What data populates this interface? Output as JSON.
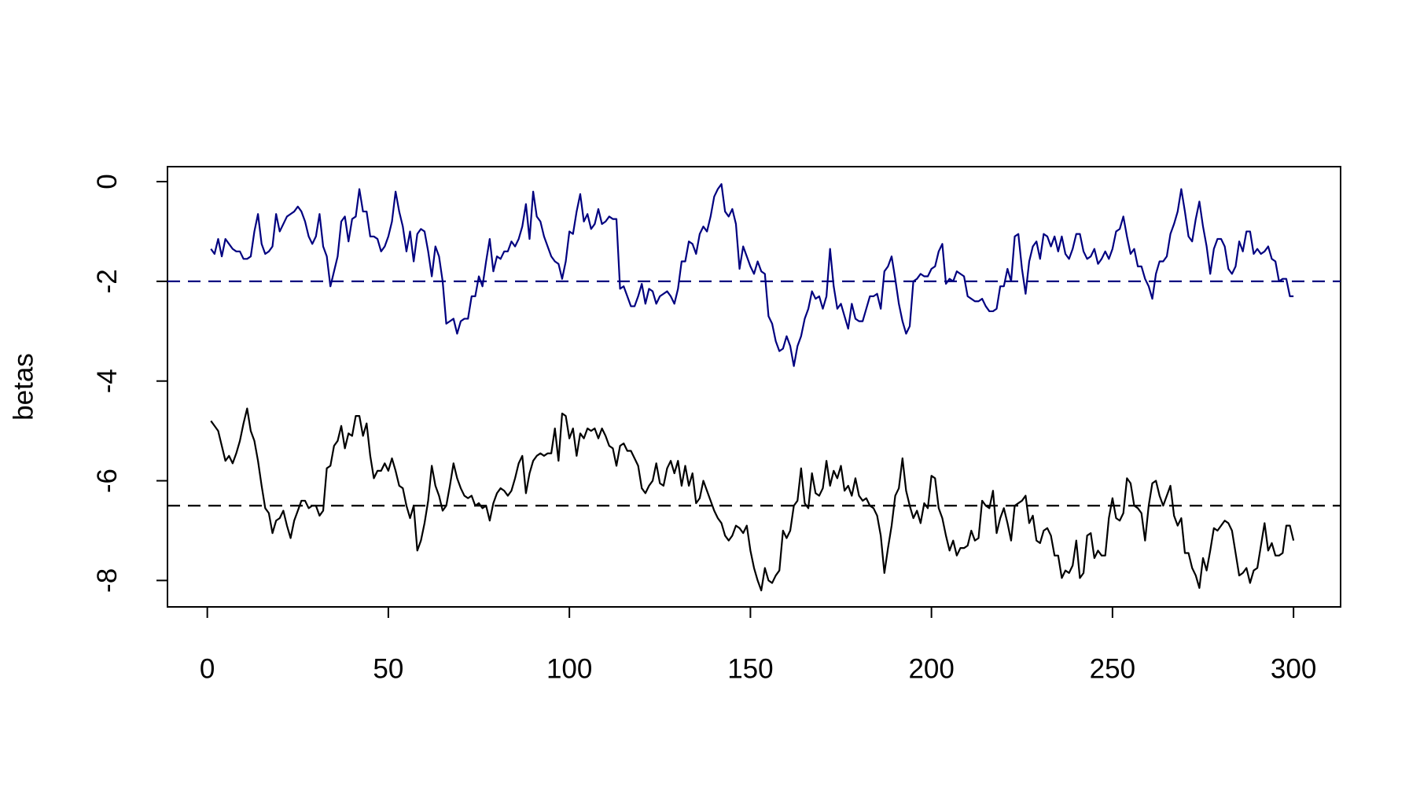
{
  "chart_data": {
    "type": "line",
    "y_label": "betas",
    "x": [
      1,
      2,
      3,
      4,
      5,
      6,
      7,
      8,
      9,
      10,
      11,
      12,
      13,
      14,
      15,
      16,
      17,
      18,
      19,
      20,
      21,
      22,
      23,
      24,
      25,
      26,
      27,
      28,
      29,
      30,
      31,
      32,
      33,
      34,
      35,
      36,
      37,
      38,
      39,
      40,
      41,
      42,
      43,
      44,
      45,
      46,
      47,
      48,
      49,
      50,
      51,
      52,
      53,
      54,
      55,
      56,
      57,
      58,
      59,
      60,
      61,
      62,
      63,
      64,
      65,
      66,
      67,
      68,
      69,
      70,
      71,
      72,
      73,
      74,
      75,
      76,
      77,
      78,
      79,
      80,
      81,
      82,
      83,
      84,
      85,
      86,
      87,
      88,
      89,
      90,
      91,
      92,
      93,
      94,
      95,
      96,
      97,
      98,
      99,
      100,
      101,
      102,
      103,
      104,
      105,
      106,
      107,
      108,
      109,
      110,
      111,
      112,
      113,
      114,
      115,
      116,
      117,
      118,
      119,
      120,
      121,
      122,
      123,
      124,
      125,
      126,
      127,
      128,
      129,
      130,
      131,
      132,
      133,
      134,
      135,
      136,
      137,
      138,
      139,
      140,
      141,
      142,
      143,
      144,
      145,
      146,
      147,
      148,
      149,
      150,
      151,
      152,
      153,
      154,
      155,
      156,
      157,
      158,
      159,
      160,
      161,
      162,
      163,
      164,
      165,
      166,
      167,
      168,
      169,
      170,
      171,
      172,
      173,
      174,
      175,
      176,
      177,
      178,
      179,
      180,
      181,
      182,
      183,
      184,
      185,
      186,
      187,
      188,
      189,
      190,
      191,
      192,
      193,
      194,
      195,
      196,
      197,
      198,
      199,
      200,
      201,
      202,
      203,
      204,
      205,
      206,
      207,
      208,
      209,
      210,
      211,
      212,
      213,
      214,
      215,
      216,
      217,
      218,
      219,
      220,
      221,
      222,
      223,
      224,
      225,
      226,
      227,
      228,
      229,
      230,
      231,
      232,
      233,
      234,
      235,
      236,
      237,
      238,
      239,
      240,
      241,
      242,
      243,
      244,
      245,
      246,
      247,
      248,
      249,
      250,
      251,
      252,
      253,
      254,
      255,
      256,
      257,
      258,
      259,
      260,
      261,
      262,
      263,
      264,
      265,
      266,
      267,
      268,
      269,
      270,
      271,
      272,
      273,
      274,
      275,
      276,
      277,
      278,
      279,
      280,
      281,
      282,
      283,
      284,
      285,
      286,
      287,
      288,
      289,
      290,
      291,
      292,
      293,
      294,
      295,
      296,
      297,
      298,
      299,
      300
    ],
    "series": [
      {
        "color": "#000080",
        "values": [
          -1.35,
          -1.45,
          -1.15,
          -1.5,
          -1.15,
          -1.25,
          -1.35,
          -1.4,
          -1.4,
          -1.55,
          -1.55,
          -1.5,
          -1.0,
          -0.65,
          -1.25,
          -1.45,
          -1.4,
          -1.3,
          -0.65,
          -1.0,
          -0.85,
          -0.7,
          -0.65,
          -0.6,
          -0.5,
          -0.6,
          -0.8,
          -1.1,
          -1.25,
          -1.1,
          -0.65,
          -1.3,
          -1.5,
          -2.1,
          -1.8,
          -1.5,
          -0.8,
          -0.7,
          -1.2,
          -0.75,
          -0.7,
          -0.15,
          -0.6,
          -0.6,
          -1.1,
          -1.1,
          -1.15,
          -1.4,
          -1.3,
          -1.1,
          -0.8,
          -0.2,
          -0.6,
          -0.9,
          -1.4,
          -1.0,
          -1.6,
          -1.05,
          -0.95,
          -1.0,
          -1.4,
          -1.9,
          -1.3,
          -1.5,
          -2.0,
          -2.85,
          -2.8,
          -2.75,
          -3.05,
          -2.8,
          -2.75,
          -2.75,
          -2.3,
          -2.3,
          -1.9,
          -2.1,
          -1.6,
          -1.15,
          -1.8,
          -1.5,
          -1.55,
          -1.4,
          -1.4,
          -1.2,
          -1.3,
          -1.15,
          -0.9,
          -0.45,
          -1.15,
          -0.2,
          -0.7,
          -0.8,
          -1.1,
          -1.3,
          -1.5,
          -1.6,
          -1.65,
          -1.95,
          -1.6,
          -1.0,
          -1.05,
          -0.6,
          -0.25,
          -0.8,
          -0.65,
          -0.95,
          -0.85,
          -0.55,
          -0.85,
          -0.8,
          -0.7,
          -0.75,
          -0.75,
          -2.15,
          -2.1,
          -2.3,
          -2.5,
          -2.5,
          -2.3,
          -2.05,
          -2.45,
          -2.15,
          -2.2,
          -2.45,
          -2.3,
          -2.25,
          -2.2,
          -2.3,
          -2.45,
          -2.15,
          -1.6,
          -1.6,
          -1.2,
          -1.25,
          -1.45,
          -1.05,
          -0.9,
          -1.0,
          -0.7,
          -0.3,
          -0.15,
          -0.05,
          -0.6,
          -0.7,
          -0.55,
          -0.85,
          -1.75,
          -1.3,
          -1.5,
          -1.7,
          -1.85,
          -1.6,
          -1.8,
          -1.85,
          -2.7,
          -2.85,
          -3.2,
          -3.4,
          -3.35,
          -3.1,
          -3.3,
          -3.7,
          -3.3,
          -3.1,
          -2.75,
          -2.55,
          -2.2,
          -2.35,
          -2.3,
          -2.55,
          -2.3,
          -1.35,
          -2.1,
          -2.55,
          -2.45,
          -2.7,
          -2.95,
          -2.45,
          -2.75,
          -2.8,
          -2.8,
          -2.55,
          -2.3,
          -2.3,
          -2.25,
          -2.55,
          -1.8,
          -1.7,
          -1.5,
          -1.95,
          -2.45,
          -2.8,
          -3.05,
          -2.9,
          -2.0,
          -1.95,
          -1.85,
          -1.9,
          -1.9,
          -1.75,
          -1.7,
          -1.4,
          -1.25,
          -2.05,
          -1.95,
          -2.0,
          -1.8,
          -1.85,
          -1.9,
          -2.3,
          -2.35,
          -2.4,
          -2.4,
          -2.35,
          -2.5,
          -2.6,
          -2.6,
          -2.55,
          -2.1,
          -2.1,
          -1.75,
          -2.0,
          -1.1,
          -1.05,
          -1.75,
          -2.25,
          -1.6,
          -1.3,
          -1.2,
          -1.55,
          -1.05,
          -1.1,
          -1.3,
          -1.1,
          -1.4,
          -1.1,
          -1.45,
          -1.55,
          -1.35,
          -1.05,
          -1.05,
          -1.4,
          -1.55,
          -1.5,
          -1.35,
          -1.65,
          -1.55,
          -1.4,
          -1.55,
          -1.35,
          -1.0,
          -0.95,
          -0.7,
          -1.1,
          -1.45,
          -1.35,
          -1.7,
          -1.7,
          -1.95,
          -2.1,
          -2.35,
          -1.85,
          -1.6,
          -1.6,
          -1.5,
          -1.05,
          -0.85,
          -0.6,
          -0.15,
          -0.6,
          -1.1,
          -1.2,
          -0.75,
          -0.4,
          -0.9,
          -1.3,
          -1.85,
          -1.35,
          -1.15,
          -1.15,
          -1.3,
          -1.75,
          -1.85,
          -1.7,
          -1.2,
          -1.4,
          -1.0,
          -1.0,
          -1.45,
          -1.35,
          -1.45,
          -1.4,
          -1.3,
          -1.55,
          -1.6,
          -2.0,
          -1.95,
          -1.95,
          -2.3,
          -2.3
        ]
      },
      {
        "color": "#000000",
        "values": [
          -4.8,
          -4.9,
          -5.0,
          -5.3,
          -5.6,
          -5.5,
          -5.65,
          -5.45,
          -5.2,
          -4.85,
          -4.55,
          -5.0,
          -5.2,
          -5.6,
          -6.1,
          -6.55,
          -6.65,
          -7.05,
          -6.8,
          -6.75,
          -6.6,
          -6.9,
          -7.15,
          -6.8,
          -6.6,
          -6.4,
          -6.4,
          -6.55,
          -6.5,
          -6.5,
          -6.7,
          -6.6,
          -5.75,
          -5.7,
          -5.3,
          -5.2,
          -4.9,
          -5.35,
          -5.05,
          -5.1,
          -4.7,
          -4.7,
          -5.1,
          -4.85,
          -5.5,
          -5.95,
          -5.8,
          -5.8,
          -5.65,
          -5.8,
          -5.55,
          -5.8,
          -6.1,
          -6.15,
          -6.5,
          -6.75,
          -6.5,
          -7.4,
          -7.2,
          -6.85,
          -6.4,
          -5.7,
          -6.1,
          -6.3,
          -6.6,
          -6.5,
          -6.1,
          -5.65,
          -5.95,
          -6.15,
          -6.3,
          -6.35,
          -6.3,
          -6.5,
          -6.45,
          -6.55,
          -6.5,
          -6.8,
          -6.45,
          -6.25,
          -6.15,
          -6.2,
          -6.3,
          -6.2,
          -5.95,
          -5.65,
          -5.5,
          -6.25,
          -5.85,
          -5.6,
          -5.5,
          -5.45,
          -5.5,
          -5.45,
          -5.45,
          -4.95,
          -5.6,
          -4.65,
          -4.7,
          -5.15,
          -4.95,
          -5.5,
          -5.05,
          -5.15,
          -4.95,
          -5.0,
          -4.95,
          -5.15,
          -4.95,
          -5.1,
          -5.3,
          -5.35,
          -5.7,
          -5.3,
          -5.25,
          -5.4,
          -5.4,
          -5.55,
          -5.7,
          -6.15,
          -6.25,
          -6.1,
          -6.0,
          -5.65,
          -6.05,
          -6.1,
          -5.75,
          -5.6,
          -5.85,
          -5.6,
          -6.1,
          -5.7,
          -6.1,
          -5.85,
          -6.45,
          -6.35,
          -6.0,
          -6.2,
          -6.4,
          -6.6,
          -6.75,
          -6.85,
          -7.1,
          -7.2,
          -7.1,
          -6.9,
          -6.95,
          -7.05,
          -6.9,
          -7.4,
          -7.75,
          -8.0,
          -8.2,
          -7.75,
          -8.0,
          -8.05,
          -7.9,
          -7.8,
          -7.0,
          -7.15,
          -7.0,
          -6.5,
          -6.4,
          -5.75,
          -6.45,
          -6.55,
          -5.85,
          -6.25,
          -6.3,
          -6.15,
          -5.6,
          -6.1,
          -5.8,
          -5.95,
          -5.7,
          -6.2,
          -6.1,
          -6.3,
          -5.95,
          -6.3,
          -6.4,
          -6.35,
          -6.5,
          -6.55,
          -6.7,
          -7.1,
          -7.85,
          -7.35,
          -6.9,
          -6.3,
          -6.15,
          -5.55,
          -6.2,
          -6.5,
          -6.75,
          -6.6,
          -6.85,
          -6.45,
          -6.55,
          -5.9,
          -5.95,
          -6.55,
          -6.75,
          -7.1,
          -7.4,
          -7.2,
          -7.5,
          -7.35,
          -7.35,
          -7.3,
          -7.0,
          -7.2,
          -7.15,
          -6.4,
          -6.5,
          -6.55,
          -6.2,
          -7.05,
          -6.75,
          -6.55,
          -6.85,
          -7.2,
          -6.5,
          -6.45,
          -6.4,
          -6.3,
          -6.85,
          -6.7,
          -7.2,
          -7.25,
          -7.0,
          -6.95,
          -7.1,
          -7.5,
          -7.5,
          -7.95,
          -7.8,
          -7.85,
          -7.7,
          -7.2,
          -7.95,
          -7.85,
          -7.1,
          -7.05,
          -7.55,
          -7.4,
          -7.5,
          -7.5,
          -6.75,
          -6.35,
          -6.75,
          -6.8,
          -6.65,
          -5.95,
          -6.05,
          -6.5,
          -6.55,
          -6.65,
          -7.2,
          -6.5,
          -6.05,
          -6.0,
          -6.3,
          -6.5,
          -6.3,
          -6.1,
          -6.7,
          -6.9,
          -6.75,
          -7.45,
          -7.45,
          -7.75,
          -7.9,
          -8.15,
          -7.55,
          -7.8,
          -7.4,
          -6.95,
          -7.0,
          -6.9,
          -6.8,
          -6.85,
          -7.0,
          -7.45,
          -7.9,
          -7.85,
          -7.75,
          -8.05,
          -7.8,
          -7.75,
          -7.3,
          -6.85,
          -7.4,
          -7.25,
          -7.5,
          -7.5,
          -7.45,
          -6.9,
          -6.9,
          -7.2
        ]
      }
    ],
    "hlines": [
      {
        "value": -2,
        "color": "#000080"
      },
      {
        "value": -6.5,
        "color": "#000000"
      }
    ],
    "xlim": [
      -11,
      313
    ],
    "xticks": [
      0,
      50,
      100,
      150,
      200,
      250,
      300
    ],
    "ylim": [
      -8.53,
      0.3
    ],
    "yticks": [
      0,
      -2,
      -4,
      -6,
      -8
    ]
  }
}
